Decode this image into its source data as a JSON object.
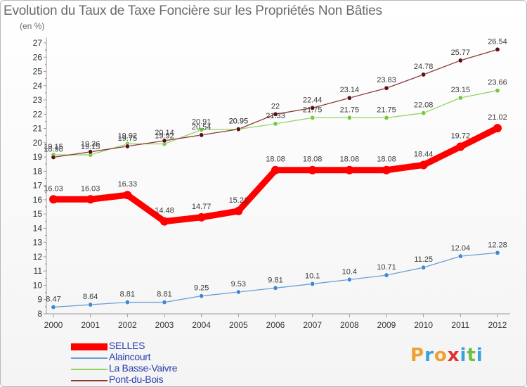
{
  "title": "Evolution du Taux de Taxe Foncière sur les Propriétés Non Bâties",
  "subtitle": "(en %)",
  "chart_data": {
    "type": "line",
    "title": "Evolution du Taux de Taxe Foncière sur les Propriétés Non Bâties",
    "subtitle": "(en %)",
    "xlabel": "",
    "ylabel": "",
    "ylim": [
      8,
      27
    ],
    "yticks": [
      "8",
      "9",
      "10",
      "11",
      "12",
      "13",
      "14",
      "15",
      "16",
      "17",
      "18",
      "19",
      "20",
      "21",
      "22",
      "23",
      "24",
      "25",
      "26",
      "27"
    ],
    "x": [
      "2000",
      "2001",
      "2002",
      "2003",
      "2004",
      "2005",
      "2006",
      "2007",
      "2008",
      "2009",
      "2010",
      "2011",
      "2012"
    ],
    "grid": false,
    "legend_position": "bottom-left",
    "series": [
      {
        "name": "SELLES",
        "color": "#ff0000",
        "width": 9,
        "values": [
          16.03,
          16.03,
          16.33,
          14.48,
          14.77,
          15.21,
          18.08,
          18.08,
          18.08,
          18.08,
          18.44,
          19.72,
          21.02
        ],
        "labels": [
          "16.03",
          "16.03",
          "16.33",
          "14.48",
          "14.77",
          "15.21",
          "18.08",
          "18.08",
          "18.08",
          "18.08",
          "18.44",
          "19.72",
          "21.02"
        ]
      },
      {
        "name": "Alaincourt",
        "color": "#6b9fd2",
        "marker_fill": "#3d87d4",
        "width": 1.3,
        "values": [
          8.47,
          8.64,
          8.81,
          8.81,
          9.25,
          9.53,
          9.81,
          10.1,
          10.4,
          10.71,
          11.25,
          12.04,
          12.28
        ],
        "labels": [
          "8.47",
          "8.64",
          "8.81",
          "8.81",
          "9.25",
          "9.53",
          "9.81",
          "10.1",
          "10.4",
          "10.71",
          "11.25",
          "12.04",
          "12.28"
        ]
      },
      {
        "name": "La Basse-Vaivre",
        "color": "#8fd65f",
        "marker_fill": "#77c83c",
        "width": 1.3,
        "values": [
          19.15,
          19.15,
          19.92,
          19.92,
          20.91,
          20.95,
          21.33,
          21.75,
          21.75,
          21.75,
          22.08,
          23.15,
          23.66
        ],
        "labels": [
          "19.15",
          "19.15",
          "19.92",
          "19.92",
          "20.91",
          "20.95",
          "21.33",
          "21.75",
          "21.75",
          "21.75",
          "22.08",
          "23.15",
          "23.66"
        ]
      },
      {
        "name": "Pont-du-Bois",
        "color": "#8b3a3a",
        "marker_fill": "#5a0f14",
        "width": 1.3,
        "values": [
          18.98,
          19.36,
          19.75,
          20.14,
          20.54,
          20.95,
          22,
          22.44,
          23.14,
          23.83,
          24.78,
          25.77,
          26.54
        ],
        "labels": [
          "18.98",
          "19.36",
          "19.75",
          "20.14",
          "20.54",
          "20.95",
          "22",
          "22.44",
          "23.14",
          "23.83",
          "24.78",
          "25.77",
          "26.54"
        ]
      }
    ]
  },
  "logo": {
    "letters": [
      "P",
      "r",
      "o",
      "x",
      "i",
      "t",
      "i"
    ],
    "colors": [
      "#f0a030",
      "#3aa0e0",
      "#f0a030",
      "#e03030",
      "#3aa0e0",
      "#6cc040",
      "#3aa0e0"
    ]
  }
}
